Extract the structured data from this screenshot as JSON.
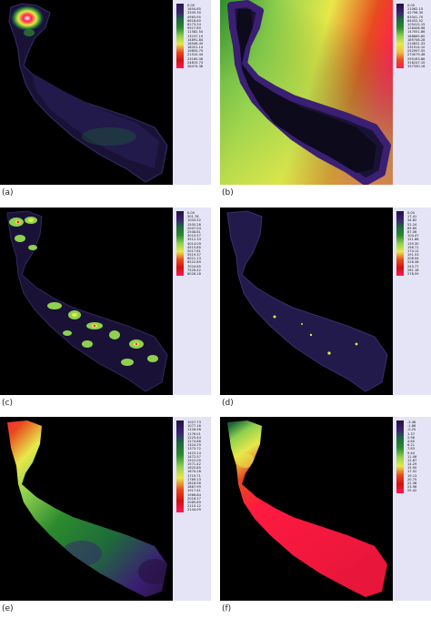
{
  "panels": [
    {
      "caption": "(a)",
      "legend": [
        "0.00",
        "1654.65",
        "3309.30",
        "4963.95",
        "6618.60",
        "8273.24",
        "9927.89",
        "11582.54",
        "13237.19",
        "14891.84",
        "16546.49",
        "18201.14",
        "19855.79",
        "21510.44",
        "23165.08",
        "24819.73",
        "26474.38"
      ],
      "gradient": [
        "#2c1a4d",
        "#3a1f73",
        "#1e6b3a",
        "#2d8a2d",
        "#8fd14f",
        "#e8e84a",
        "#e84a1e",
        "#d01010",
        "#ff1a55"
      ]
    },
    {
      "caption": "(b)",
      "legend": [
        "0.00",
        "21062.15",
        "42796.30",
        "63341.70",
        "84052.52",
        "105415.15",
        "126408.98",
        "147051.86",
        "168665.60",
        "189746.28",
        "210831.33",
        "231914.10",
        "252997.55",
        "274079.48",
        "295163.86",
        "316247.10",
        "337330.16"
      ],
      "gradient": [
        "#24103a",
        "#3a1f73",
        "#1e6b3a",
        "#2d8a2d",
        "#8fd14f",
        "#e8e84a",
        "#f0c040",
        "#e84a1e",
        "#ff1a55"
      ]
    },
    {
      "caption": "(c)",
      "legend": [
        "0.00",
        "501.76",
        "1003.52",
        "1505.28",
        "2007.04",
        "2508.81",
        "3010.57",
        "3512.33",
        "4014.09",
        "4515.85",
        "5017.61",
        "5519.37",
        "6021.13",
        "6522.89",
        "7024.65",
        "7526.42",
        "8028.18"
      ],
      "gradient": [
        "#24103a",
        "#3a1f73",
        "#1e6b3a",
        "#2d8a2d",
        "#8fd14f",
        "#e8e84a",
        "#e84a1e",
        "#d01010",
        "#ff1a55"
      ]
    },
    {
      "caption": "(d)",
      "legend": [
        "0.00",
        "17.41",
        "34.82",
        "52.24",
        "69.65",
        "87.06",
        "104.47",
        "121.88",
        "139.30",
        "156.71",
        "174.12",
        "191.53",
        "208.94",
        "226.36",
        "243.77",
        "261.18",
        "278.59"
      ],
      "gradient": [
        "#24103a",
        "#3a1f73",
        "#1e6b3a",
        "#2d8a2d",
        "#8fd14f",
        "#e8e84a",
        "#e84a1e",
        "#d01010",
        "#ff1a55"
      ]
    },
    {
      "caption": "(e)",
      "legend": [
        "1027.73",
        "1077.16",
        "1126.58",
        "1176.01",
        "1225.44",
        "1274.86",
        "1324.29",
        "1373.72",
        "1423.14",
        "1472.57",
        "1522.00",
        "1571.42",
        "1620.85",
        "1670.28",
        "1719.71",
        "1769.13",
        "1818.56",
        "1867.99",
        "1917.41",
        "1966.84",
        "2016.27",
        "2065.69",
        "2115.12",
        "2144.09"
      ],
      "gradient": [
        "#24103a",
        "#3a1f73",
        "#1e6b3a",
        "#2d8a2d",
        "#8fd14f",
        "#e8e84a",
        "#e84a1e",
        "#d01010",
        "#ff1a55"
      ]
    },
    {
      "caption": "(f)",
      "legend": [
        "-3.48",
        "-1.86",
        "-0.25",
        "1.37",
        "2.98",
        "4.60",
        "6.21",
        "7.83",
        "9.44",
        "11.06",
        "12.67",
        "14.29",
        "15.90",
        "17.52",
        "19.13",
        "20.75",
        "22.36",
        "23.98",
        "25.42"
      ],
      "gradient": [
        "#24103a",
        "#3a1f73",
        "#1e6b3a",
        "#2d8a2d",
        "#8fd14f",
        "#e8e84a",
        "#e84a1e",
        "#d01010",
        "#ff1a55"
      ]
    }
  ]
}
